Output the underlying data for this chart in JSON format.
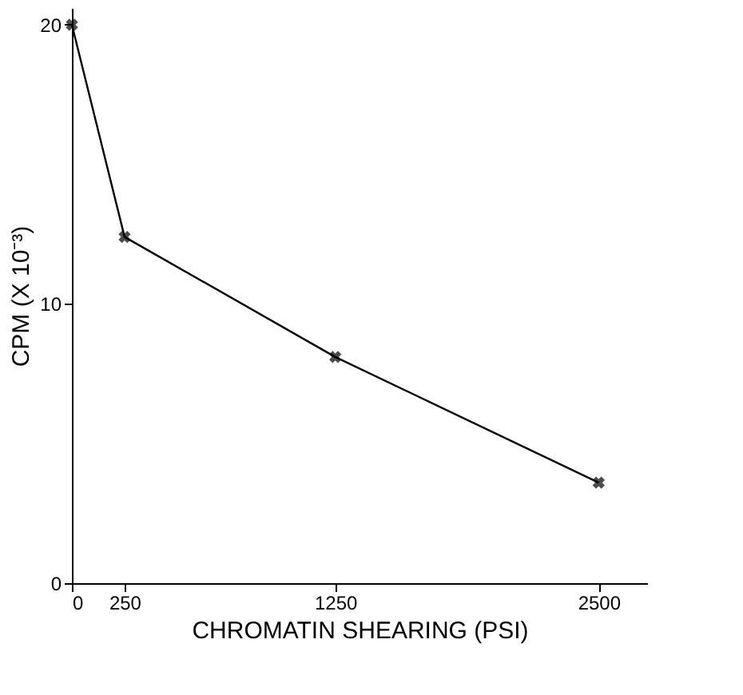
{
  "chart_data": {
    "type": "line",
    "xlabel": "CHROMATIN SHEARING (PSI)",
    "ylabel": "CPM (X 10⁻³)",
    "x": [
      0,
      250,
      1250,
      2500
    ],
    "series": [
      {
        "color": "#000000",
        "values": [
          20,
          12.4,
          8.1,
          3.6
        ]
      }
    ],
    "xlim": [
      0,
      2730
    ],
    "ylim": [
      0,
      20.6
    ],
    "xticks": [
      0,
      250,
      1250,
      2500
    ],
    "yticks": [
      0,
      10,
      20
    ],
    "marker": "cross",
    "line_style": "solid",
    "grid": false
  }
}
